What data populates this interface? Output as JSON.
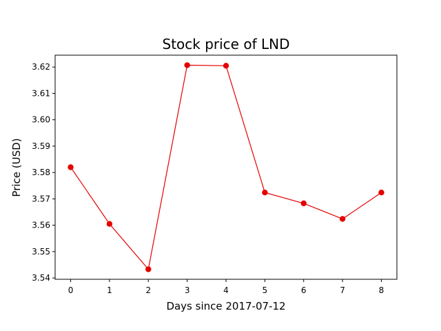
{
  "chart_data": {
    "type": "line",
    "title": "Stock price of LND",
    "xlabel": "Days since 2017-07-12",
    "ylabel": "Price (USD)",
    "x": [
      0,
      1,
      2,
      3,
      4,
      5,
      6,
      7,
      8
    ],
    "xticks": [
      "0",
      "1",
      "2",
      "3",
      "4",
      "5",
      "6",
      "7",
      "8"
    ],
    "yticks": [
      "3.54",
      "3.55",
      "3.56",
      "3.57",
      "3.58",
      "3.59",
      "3.60",
      "3.61",
      "3.62"
    ],
    "series": [
      {
        "values": [
          3.582,
          3.5605,
          3.5433,
          3.6207,
          3.6205,
          3.5724,
          3.5683,
          3.5624,
          3.5724
        ],
        "color": "#e50000"
      }
    ],
    "xlim": [
      -0.4,
      8.4
    ],
    "ylim": [
      3.5395,
      3.6245
    ],
    "grid": false,
    "legend": "none"
  }
}
